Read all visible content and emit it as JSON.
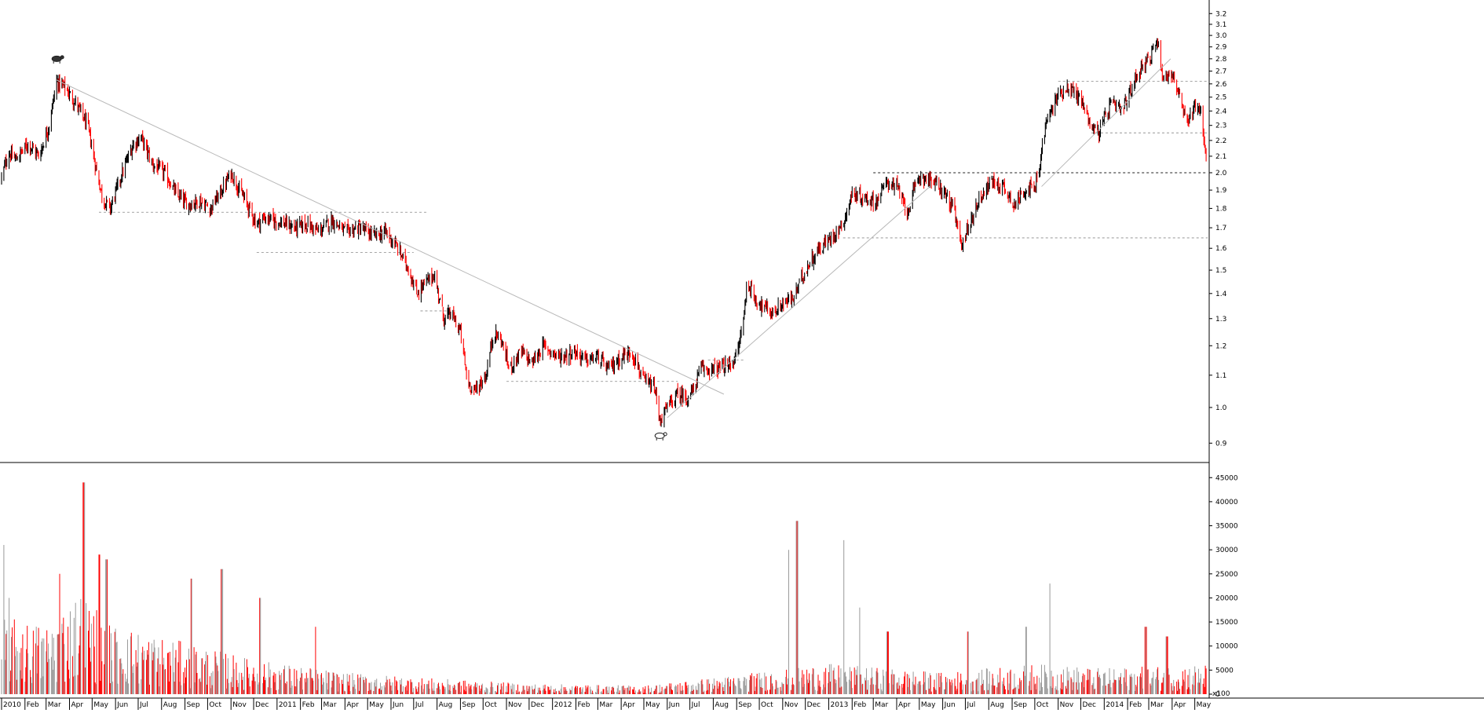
{
  "chart_data": [
    {
      "type": "candlestick",
      "panel": "price",
      "y_scale": "log",
      "ylim": [
        0.85,
        3.3
      ],
      "y_ticks": [
        0.9,
        1.0,
        1.1,
        1.2,
        1.3,
        1.4,
        1.5,
        1.6,
        1.7,
        1.8,
        1.9,
        2.0,
        2.1,
        2.2,
        2.3,
        2.4,
        2.5,
        2.6,
        2.7,
        2.8,
        2.9,
        3.0,
        3.1,
        3.2
      ],
      "y_tick_labels": [
        "0.9",
        "1.0",
        "1.1",
        "1.2",
        "1.3",
        "1.4",
        "1.5",
        "1.6",
        "1.7",
        "1.8",
        "1.9",
        "2.0",
        "2.1",
        "2.2",
        "2.3",
        "2.4",
        "2.5",
        "2.6",
        "2.7",
        "2.8",
        "2.9",
        "3.0",
        "3.1",
        "3.2"
      ],
      "up_color": "#000000",
      "down_color": "#ff0000",
      "price_path": [
        [
          "2010-01-01",
          1.97
        ],
        [
          "2010-01-10",
          2.12
        ],
        [
          "2010-01-20",
          2.08
        ],
        [
          "2010-02-05",
          2.18
        ],
        [
          "2010-02-20",
          2.1
        ],
        [
          "2010-03-05",
          2.3
        ],
        [
          "2010-03-15",
          2.62
        ],
        [
          "2010-03-25",
          2.58
        ],
        [
          "2010-04-10",
          2.45
        ],
        [
          "2010-04-25",
          2.3
        ],
        [
          "2010-05-05",
          2.05
        ],
        [
          "2010-05-15",
          1.85
        ],
        [
          "2010-05-25",
          1.8
        ],
        [
          "2010-06-10",
          2.0
        ],
        [
          "2010-06-25",
          2.18
        ],
        [
          "2010-07-05",
          2.22
        ],
        [
          "2010-07-20",
          2.05
        ],
        [
          "2010-08-05",
          2.0
        ],
        [
          "2010-08-20",
          1.88
        ],
        [
          "2010-09-05",
          1.82
        ],
        [
          "2010-09-20",
          1.84
        ],
        [
          "2010-10-05",
          1.8
        ],
        [
          "2010-10-20",
          1.9
        ],
        [
          "2010-11-01",
          2.0
        ],
        [
          "2010-11-10",
          1.92
        ],
        [
          "2010-11-25",
          1.8
        ],
        [
          "2010-12-05",
          1.72
        ],
        [
          "2010-12-15",
          1.75
        ],
        [
          "2011-01-05",
          1.73
        ],
        [
          "2011-01-25",
          1.7
        ],
        [
          "2011-02-10",
          1.72
        ],
        [
          "2011-02-25",
          1.68
        ],
        [
          "2011-03-15",
          1.74
        ],
        [
          "2011-04-01",
          1.68
        ],
        [
          "2011-04-20",
          1.7
        ],
        [
          "2011-05-10",
          1.66
        ],
        [
          "2011-05-25",
          1.68
        ],
        [
          "2011-06-10",
          1.6
        ],
        [
          "2011-06-25",
          1.5
        ],
        [
          "2011-07-05",
          1.4
        ],
        [
          "2011-07-15",
          1.44
        ],
        [
          "2011-07-28",
          1.48
        ],
        [
          "2011-08-10",
          1.3
        ],
        [
          "2011-08-20",
          1.32
        ],
        [
          "2011-09-01",
          1.25
        ],
        [
          "2011-09-10",
          1.08
        ],
        [
          "2011-09-20",
          1.05
        ],
        [
          "2011-10-05",
          1.1
        ],
        [
          "2011-10-15",
          1.25
        ],
        [
          "2011-10-25",
          1.22
        ],
        [
          "2011-11-05",
          1.12
        ],
        [
          "2011-11-20",
          1.18
        ],
        [
          "2011-12-05",
          1.14
        ],
        [
          "2011-12-20",
          1.2
        ],
        [
          "2012-01-10",
          1.16
        ],
        [
          "2012-01-30",
          1.18
        ],
        [
          "2012-02-15",
          1.15
        ],
        [
          "2012-03-01",
          1.16
        ],
        [
          "2012-03-15",
          1.12
        ],
        [
          "2012-04-01",
          1.16
        ],
        [
          "2012-04-15",
          1.18
        ],
        [
          "2012-05-01",
          1.08
        ],
        [
          "2012-05-15",
          1.06
        ],
        [
          "2012-05-22",
          0.96
        ],
        [
          "2012-06-01",
          1.0
        ],
        [
          "2012-06-15",
          1.04
        ],
        [
          "2012-06-28",
          1.03
        ],
        [
          "2012-07-05",
          1.05
        ],
        [
          "2012-07-15",
          1.12
        ],
        [
          "2012-08-01",
          1.12
        ],
        [
          "2012-08-20",
          1.13
        ],
        [
          "2012-09-01",
          1.16
        ],
        [
          "2012-09-10",
          1.3
        ],
        [
          "2012-09-15",
          1.45
        ],
        [
          "2012-09-25",
          1.38
        ],
        [
          "2012-10-05",
          1.35
        ],
        [
          "2012-10-20",
          1.32
        ],
        [
          "2012-11-01",
          1.36
        ],
        [
          "2012-11-15",
          1.38
        ],
        [
          "2012-12-01",
          1.5
        ],
        [
          "2012-12-15",
          1.58
        ],
        [
          "2013-01-01",
          1.64
        ],
        [
          "2013-01-20",
          1.72
        ],
        [
          "2013-02-01",
          1.88
        ],
        [
          "2013-02-20",
          1.85
        ],
        [
          "2013-03-05",
          1.84
        ],
        [
          "2013-03-20",
          1.95
        ],
        [
          "2013-04-01",
          1.92
        ],
        [
          "2013-04-15",
          1.78
        ],
        [
          "2013-05-01",
          1.98
        ],
        [
          "2013-05-15",
          1.96
        ],
        [
          "2013-06-01",
          1.9
        ],
        [
          "2013-06-15",
          1.8
        ],
        [
          "2013-06-25",
          1.62
        ],
        [
          "2013-07-05",
          1.7
        ],
        [
          "2013-07-20",
          1.86
        ],
        [
          "2013-08-05",
          1.95
        ],
        [
          "2013-08-20",
          1.92
        ],
        [
          "2013-09-05",
          1.82
        ],
        [
          "2013-09-20",
          1.92
        ],
        [
          "2013-10-01",
          1.9
        ],
        [
          "2013-10-08",
          2.05
        ],
        [
          "2013-10-15",
          2.3
        ],
        [
          "2013-11-01",
          2.52
        ],
        [
          "2013-11-15",
          2.58
        ],
        [
          "2013-12-01",
          2.48
        ],
        [
          "2013-12-15",
          2.3
        ],
        [
          "2013-12-25",
          2.25
        ],
        [
          "2014-01-10",
          2.45
        ],
        [
          "2014-01-25",
          2.4
        ],
        [
          "2014-02-05",
          2.55
        ],
        [
          "2014-02-20",
          2.75
        ],
        [
          "2014-03-05",
          2.82
        ],
        [
          "2014-03-12",
          2.98
        ],
        [
          "2014-03-20",
          2.65
        ],
        [
          "2014-04-01",
          2.68
        ],
        [
          "2014-04-10",
          2.52
        ],
        [
          "2014-04-20",
          2.3
        ],
        [
          "2014-05-01",
          2.45
        ],
        [
          "2014-05-10",
          2.4
        ],
        [
          "2014-05-15",
          2.1
        ]
      ],
      "horizontal_lines": [
        {
          "y": 1.78,
          "from": "2010-05-10",
          "to": "2011-07-20",
          "style": "dashed"
        },
        {
          "y": 1.58,
          "from": "2010-12-05",
          "to": "2011-07-01",
          "style": "dashed"
        },
        {
          "y": 1.33,
          "from": "2011-07-10",
          "to": "2011-08-25",
          "style": "dashed"
        },
        {
          "y": 1.08,
          "from": "2011-11-01",
          "to": "2012-06-15",
          "style": "dashed"
        },
        {
          "y": 1.15,
          "from": "2012-07-25",
          "to": "2012-09-10",
          "style": "dashed"
        },
        {
          "y": 2.0,
          "from": "2013-03-01",
          "to": "2014-06-01",
          "style": "dashed-dark"
        },
        {
          "y": 1.65,
          "from": "2013-01-20",
          "to": "2014-06-01",
          "style": "dashed"
        },
        {
          "y": 2.62,
          "from": "2013-11-01",
          "to": "2014-06-01",
          "style": "dashed"
        },
        {
          "y": 2.25,
          "from": "2013-12-15",
          "to": "2014-06-01",
          "style": "dashed"
        }
      ],
      "trend_lines": [
        {
          "from": [
            "2010-03-15",
            2.63
          ],
          "to": [
            "2012-08-15",
            1.04
          ]
        },
        {
          "from": [
            "2012-06-01",
            0.97
          ],
          "to": [
            "2013-05-15",
            1.92
          ]
        },
        {
          "from": [
            "2013-10-10",
            1.92
          ],
          "to": [
            "2014-03-30",
            2.8
          ]
        }
      ],
      "markers": [
        {
          "icon": "bear-icon",
          "date": "2010-03-15",
          "y": 2.8
        },
        {
          "icon": "bull-icon",
          "date": "2012-05-22",
          "y": 0.92
        }
      ]
    },
    {
      "type": "bar",
      "panel": "volume",
      "ylim": [
        0,
        47000
      ],
      "y_ticks": [
        0,
        5000,
        10000,
        15000,
        20000,
        25000,
        30000,
        35000,
        40000,
        45000
      ],
      "y_tick_labels": [
        "0",
        "5000",
        "10000",
        "15000",
        "20000",
        "25000",
        "30000",
        "35000",
        "40000",
        "45000"
      ],
      "scale_note": "x100",
      "volume_profile": [
        [
          "2010-01-01",
          9000
        ],
        [
          "2010-03-01",
          8000
        ],
        [
          "2010-04-15",
          12000
        ],
        [
          "2010-06-01",
          8000
        ],
        [
          "2010-09-01",
          6000
        ],
        [
          "2010-12-01",
          4000
        ],
        [
          "2011-04-01",
          2500
        ],
        [
          "2011-08-01",
          1800
        ],
        [
          "2011-12-01",
          1200
        ],
        [
          "2012-05-01",
          1000
        ],
        [
          "2012-09-01",
          2200
        ],
        [
          "2012-11-01",
          3000
        ],
        [
          "2013-01-01",
          3500
        ],
        [
          "2013-06-01",
          2500
        ],
        [
          "2013-10-01",
          3500
        ],
        [
          "2014-01-01",
          3000
        ],
        [
          "2014-05-15",
          3500
        ]
      ],
      "volume_spikes": [
        [
          "2010-01-03",
          31000
        ],
        [
          "2010-01-10",
          20000
        ],
        [
          "2010-04-20",
          44000
        ],
        [
          "2010-05-10",
          29000
        ],
        [
          "2010-05-20",
          28000
        ],
        [
          "2010-03-20",
          25000
        ],
        [
          "2010-09-10",
          24000
        ],
        [
          "2010-10-20",
          26000
        ],
        [
          "2010-12-10",
          20000
        ],
        [
          "2011-02-20",
          14000
        ],
        [
          "2012-11-10",
          30000
        ],
        [
          "2012-11-20",
          36000
        ],
        [
          "2013-01-20",
          32000
        ],
        [
          "2013-02-10",
          18000
        ],
        [
          "2013-03-20",
          13000
        ],
        [
          "2013-07-05",
          13000
        ],
        [
          "2013-10-20",
          23000
        ],
        [
          "2013-09-20",
          14000
        ],
        [
          "2014-02-25",
          14000
        ],
        [
          "2014-03-25",
          12000
        ]
      ]
    }
  ],
  "x_axis": {
    "ticks": [
      {
        "date": "2010-01-01",
        "label": "2010"
      },
      {
        "date": "2010-02-01",
        "label": "Feb"
      },
      {
        "date": "2010-03-01",
        "label": "Mar"
      },
      {
        "date": "2010-04-01",
        "label": "Apr"
      },
      {
        "date": "2010-05-01",
        "label": "May"
      },
      {
        "date": "2010-06-01",
        "label": "Jun"
      },
      {
        "date": "2010-07-01",
        "label": "Jul"
      },
      {
        "date": "2010-08-01",
        "label": "Aug"
      },
      {
        "date": "2010-09-01",
        "label": "Sep"
      },
      {
        "date": "2010-10-01",
        "label": "Oct"
      },
      {
        "date": "2010-11-01",
        "label": "Nov"
      },
      {
        "date": "2010-12-01",
        "label": "Dec"
      },
      {
        "date": "2011-01-01",
        "label": "2011"
      },
      {
        "date": "2011-02-01",
        "label": "Feb"
      },
      {
        "date": "2011-03-01",
        "label": "Mar"
      },
      {
        "date": "2011-04-01",
        "label": "Apr"
      },
      {
        "date": "2011-05-01",
        "label": "May"
      },
      {
        "date": "2011-06-01",
        "label": "Jun"
      },
      {
        "date": "2011-07-01",
        "label": "Jul"
      },
      {
        "date": "2011-08-01",
        "label": "Aug"
      },
      {
        "date": "2011-09-01",
        "label": "Sep"
      },
      {
        "date": "2011-10-01",
        "label": "Oct"
      },
      {
        "date": "2011-11-01",
        "label": "Nov"
      },
      {
        "date": "2011-12-01",
        "label": "Dec"
      },
      {
        "date": "2012-01-01",
        "label": "2012"
      },
      {
        "date": "2012-02-01",
        "label": "Feb"
      },
      {
        "date": "2012-03-01",
        "label": "Mar"
      },
      {
        "date": "2012-04-01",
        "label": "Apr"
      },
      {
        "date": "2012-05-01",
        "label": "May"
      },
      {
        "date": "2012-06-01",
        "label": "Jun"
      },
      {
        "date": "2012-07-01",
        "label": "Jul"
      },
      {
        "date": "2012-08-01",
        "label": "Aug"
      },
      {
        "date": "2012-09-01",
        "label": "Sep"
      },
      {
        "date": "2012-10-01",
        "label": "Oct"
      },
      {
        "date": "2012-11-01",
        "label": "Nov"
      },
      {
        "date": "2012-12-01",
        "label": "Dec"
      },
      {
        "date": "2013-01-01",
        "label": "2013"
      },
      {
        "date": "2013-02-01",
        "label": "Feb"
      },
      {
        "date": "2013-03-01",
        "label": "Mar"
      },
      {
        "date": "2013-04-01",
        "label": "Apr"
      },
      {
        "date": "2013-05-01",
        "label": "May"
      },
      {
        "date": "2013-06-01",
        "label": "Jun"
      },
      {
        "date": "2013-07-01",
        "label": "Jul"
      },
      {
        "date": "2013-08-01",
        "label": "Aug"
      },
      {
        "date": "2013-09-01",
        "label": "Sep"
      },
      {
        "date": "2013-10-01",
        "label": "Oct"
      },
      {
        "date": "2013-11-01",
        "label": "Nov"
      },
      {
        "date": "2013-12-01",
        "label": "Dec"
      },
      {
        "date": "2014-01-01",
        "label": "2014"
      },
      {
        "date": "2014-02-01",
        "label": "Feb"
      },
      {
        "date": "2014-03-01",
        "label": "Mar"
      },
      {
        "date": "2014-04-01",
        "label": "Apr"
      },
      {
        "date": "2014-05-01",
        "label": "May"
      }
    ],
    "start": "2010-01-01",
    "end": "2014-05-18"
  }
}
